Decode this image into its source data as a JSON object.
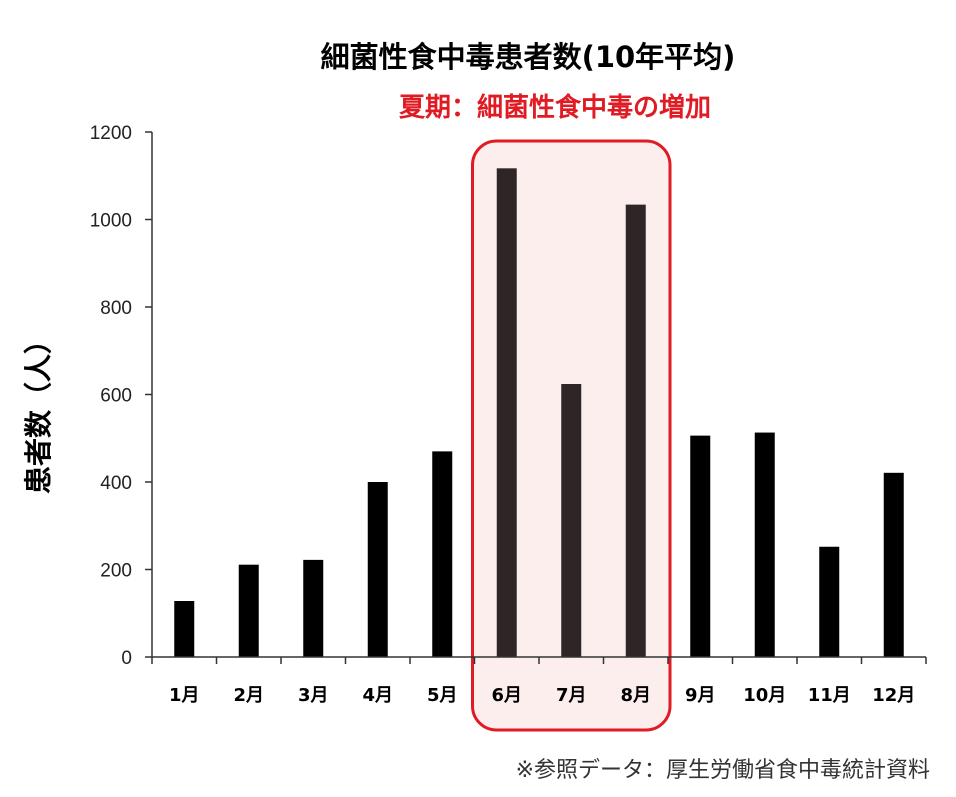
{
  "chart_data": {
    "type": "bar",
    "title": "細菌性食中毒患者数(10年平均)",
    "subtitle": "夏期：細菌性食中毒の増加",
    "ylabel": "患者数（人）",
    "xlabel": "",
    "categories": [
      "1月",
      "2月",
      "3月",
      "4月",
      "5月",
      "6月",
      "7月",
      "8月",
      "9月",
      "10月",
      "11月",
      "12月"
    ],
    "values": [
      128,
      211,
      222,
      400,
      470,
      1117,
      624,
      1034,
      506,
      513,
      252,
      421
    ],
    "ylim": [
      0,
      1200
    ],
    "yticks": [
      0,
      200,
      400,
      600,
      800,
      1000,
      1200
    ],
    "grid": false,
    "legend": "none",
    "highlight": {
      "categories": [
        "6月",
        "7月",
        "8月"
      ],
      "color": "#e01b24",
      "fill": "#fdeeee"
    },
    "colors": {
      "bar": "#000000",
      "highlight_bar": "#2e2626",
      "axis": "#333333"
    },
    "source": "※参照データ：厚生労働省食中毒統計資料"
  }
}
